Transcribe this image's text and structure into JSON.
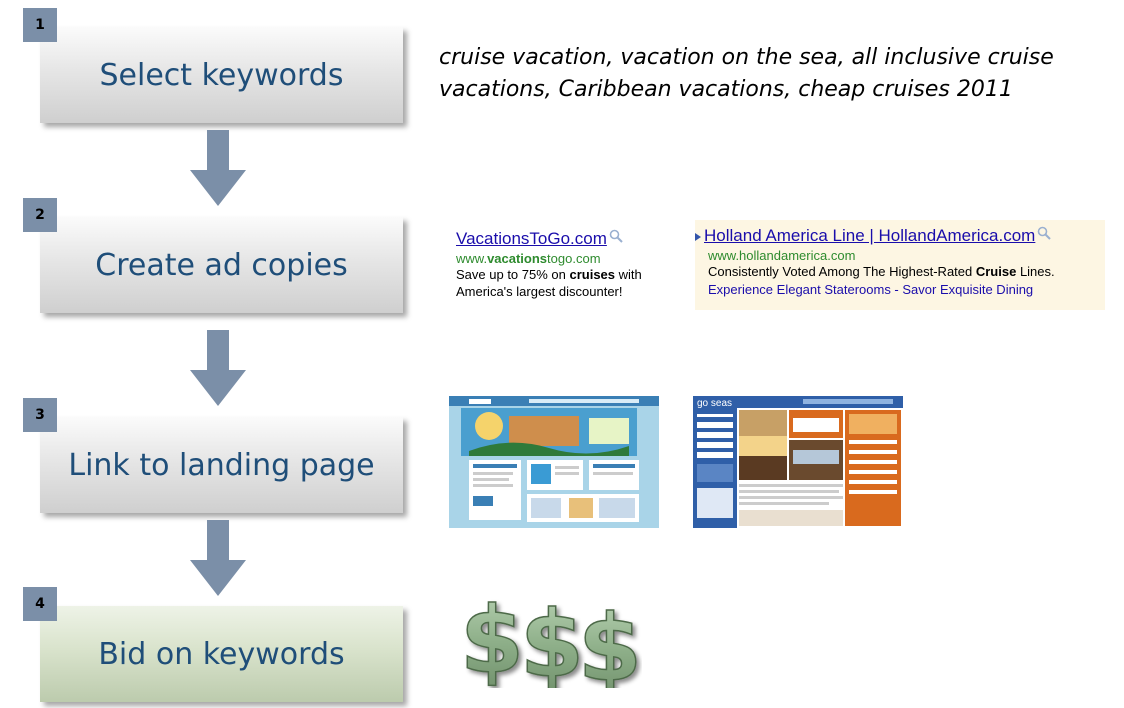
{
  "steps": [
    {
      "number": "1",
      "label": "Select keywords"
    },
    {
      "number": "2",
      "label": "Create ad copies"
    },
    {
      "number": "3",
      "label": "Link to landing page"
    },
    {
      "number": "4",
      "label": "Bid on keywords"
    }
  ],
  "keywords_text": "cruise vacation, vacation on the sea, all inclusive cruise vacations, Caribbean vacations, cheap cruises 2011",
  "ad1": {
    "title": "VacationsToGo.com",
    "url_prefix": "www.",
    "url_bold": "vacations",
    "url_suffix": "togo.com",
    "desc_1": "Save up to 75% on ",
    "desc_bold": "cruises",
    "desc_2": " with America's largest discounter!"
  },
  "ad2": {
    "title": "Holland America Line | HollandAmerica.com",
    "url": "www.hollandamerica.com",
    "desc_1": "Consistently Voted Among The Highest-Rated ",
    "desc_bold": "Cruise",
    "desc_2": " Lines.",
    "links": "Experience Elegant Staterooms - Savor Exquisite Dining"
  },
  "landing_pages": {
    "page2_logo": "go seas"
  },
  "colors": {
    "step_text": "#1f4e79",
    "step_number_bg": "#7b8fa8",
    "arrow": "#7b8fa8",
    "dollar": "#8fb08a"
  },
  "icons": [
    "down-arrow-icon",
    "magnifier-icon",
    "dollar-sign-icon"
  ]
}
